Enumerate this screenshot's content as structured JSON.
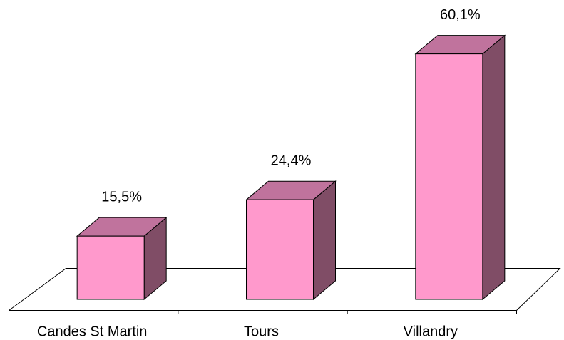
{
  "chart_data": {
    "type": "bar3d",
    "categories": [
      "Candes St Martin",
      "Tours",
      "Villandry"
    ],
    "values": [
      15.5,
      24.4,
      60.1
    ],
    "value_labels": [
      "15,5%",
      "24,4%",
      "60,1%"
    ],
    "colors": {
      "front": "#ff99cc",
      "top": "#c0739d",
      "side": "#804d66"
    }
  }
}
